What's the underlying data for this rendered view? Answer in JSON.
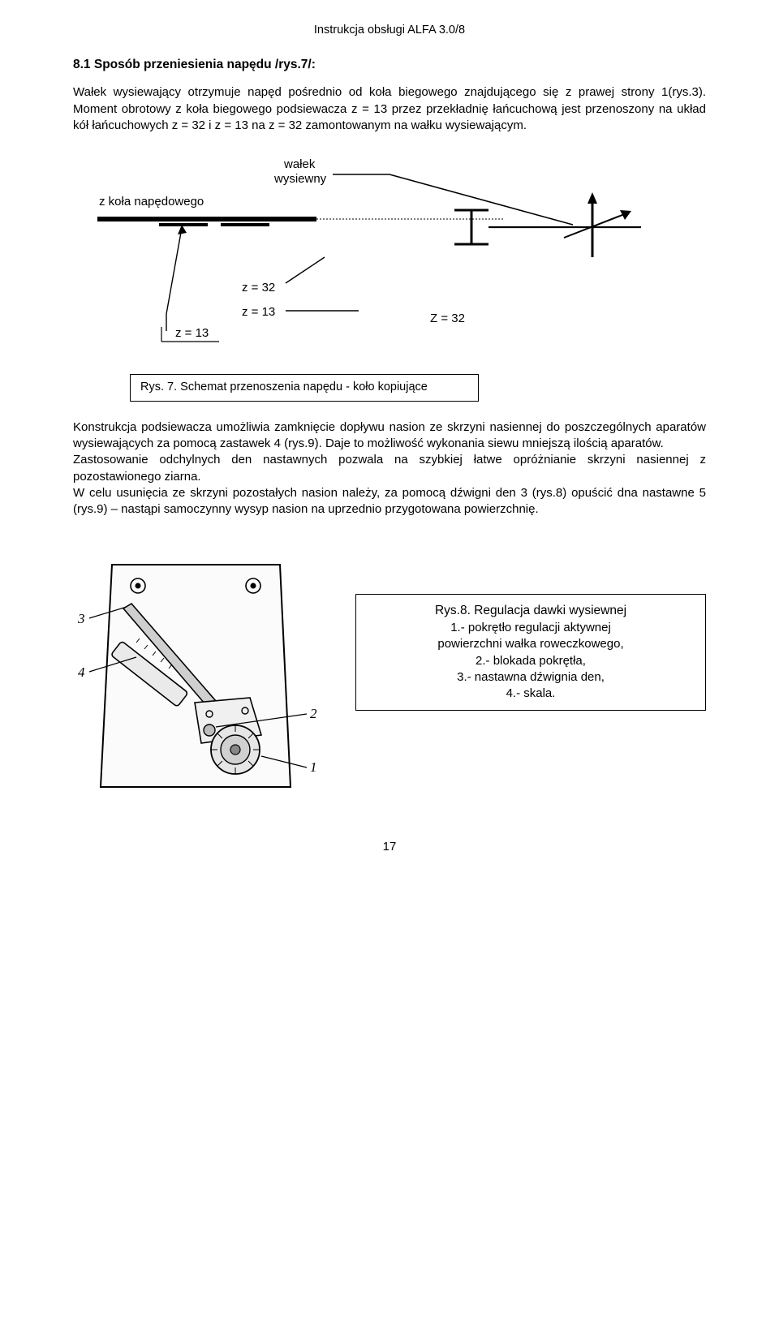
{
  "header": "Instrukcja obsługi ALFA 3.0/8",
  "section_title": "8.1 Sposób przeniesienia napędu /rys.7/:",
  "para1": "Wałek wysiewający otrzymuje napęd pośrednio od  koła biegowego znajdującego się z prawej strony 1(rys.3). Moment obrotowy z koła biegowego podsiewacza z = 13 przez przekładnię łańcuchową  jest przenoszony na układ kół łańcuchowych z = 32 i z = 13 na z = 32 zamontowanym na wałku wysiewającym.",
  "diagram": {
    "label_top": "wałek\nwysiewny",
    "label_left": "z koła napędowego",
    "z_labels": {
      "z32a": "z = 32",
      "z13a": "z = 13",
      "z13b": "z = 13",
      "z32b": "Z = 32"
    },
    "line_color": "#000000",
    "dotted_color": "#000000"
  },
  "caption7": "Rys. 7. Schemat przenoszenia napędu - koło kopiujące",
  "para2": "Konstrukcja podsiewacza umożliwia zamknięcie dopływu nasion ze skrzyni nasiennej do poszczególnych aparatów wysiewających za pomocą zastawek 4 (rys.9). Daje to możliwość wykonania siewu mniejszą ilością aparatów.\nZastosowanie odchylnych den nastawnych pozwala na szybkiej łatwe opróżnianie skrzyni nasiennej z pozostawionego ziarna.\nW celu usunięcia ze skrzyni pozostałych nasion należy, za pomocą dźwigni den 3 (rys.8) opuścić dna nastawne 5 (rys.9) – nastąpi samoczynny wysyp nasion na uprzednio przygotowana powierzchnię.",
  "fig8": {
    "callouts": {
      "c1": "1",
      "c2": "2",
      "c3": "3",
      "c4": "4"
    },
    "stroke": "#000000",
    "fill_light": "#f2f2f2",
    "fill_gray": "#9b9b9b"
  },
  "rys8_box": {
    "title": "Rys.8. Regulacja dawki wysiewnej",
    "l1": "1.- pokrętło regulacji aktywnej",
    "l2": "powierzchni wałka roweczkowego,",
    "l3": "2.- blokada pokrętła,",
    "l4": "3.- nastawna dźwignia den,",
    "l5": "4.- skala."
  },
  "page_number": "17"
}
